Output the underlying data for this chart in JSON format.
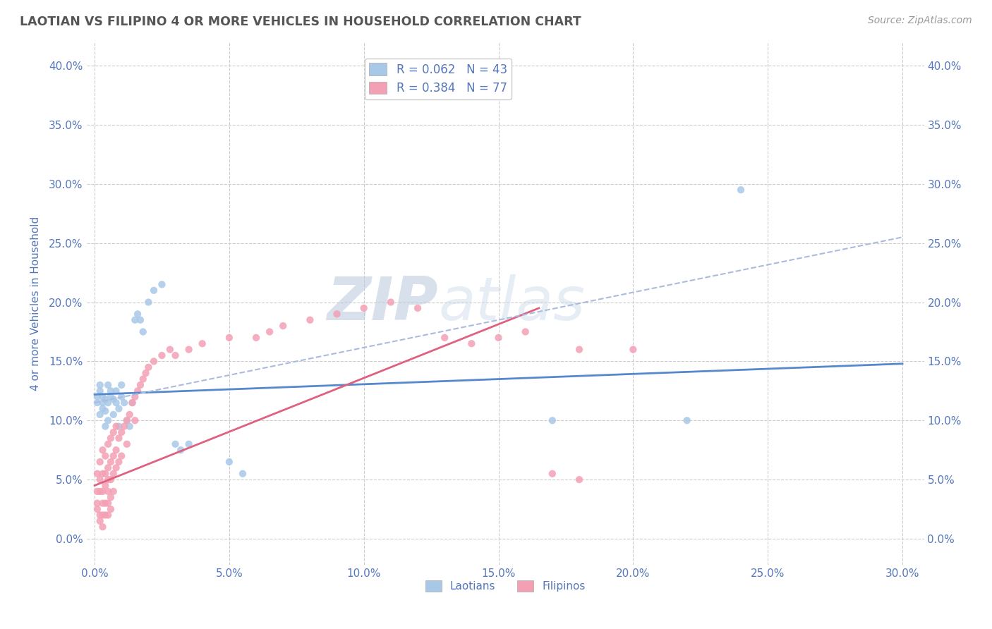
{
  "title": "LAOTIAN VS FILIPINO 4 OR MORE VEHICLES IN HOUSEHOLD CORRELATION CHART",
  "source": "Source: ZipAtlas.com",
  "xlabel_ticks": [
    0.0,
    0.05,
    0.1,
    0.15,
    0.2,
    0.25,
    0.3
  ],
  "ylabel_ticks": [
    0.0,
    0.05,
    0.1,
    0.15,
    0.2,
    0.25,
    0.3,
    0.35,
    0.4
  ],
  "xlim": [
    -0.003,
    0.308
  ],
  "ylim": [
    -0.022,
    0.42
  ],
  "ylabel": "4 or more Vehicles in Household",
  "laotian_R": 0.062,
  "laotian_N": 43,
  "filipino_R": 0.384,
  "filipino_N": 77,
  "laotian_color": "#a8c8e8",
  "filipino_color": "#f4a0b4",
  "laotian_line_color": "#5588cc",
  "filipino_line_color": "#e06080",
  "laotian_dash_color": "#aabbdd",
  "grid_color": "#cccccc",
  "title_color": "#555555",
  "axis_label_color": "#5577bb",
  "tick_color": "#5577bb",
  "watermark_text": "ZIPatlas",
  "watermark_color": "#d0d8e8",
  "laotian_scatter": [
    [
      0.001,
      0.12
    ],
    [
      0.001,
      0.115
    ],
    [
      0.002,
      0.125
    ],
    [
      0.002,
      0.13
    ],
    [
      0.002,
      0.105
    ],
    [
      0.003,
      0.12
    ],
    [
      0.003,
      0.11
    ],
    [
      0.003,
      0.115
    ],
    [
      0.004,
      0.118
    ],
    [
      0.004,
      0.108
    ],
    [
      0.004,
      0.095
    ],
    [
      0.005,
      0.13
    ],
    [
      0.005,
      0.115
    ],
    [
      0.005,
      0.1
    ],
    [
      0.006,
      0.125
    ],
    [
      0.006,
      0.12
    ],
    [
      0.007,
      0.118
    ],
    [
      0.007,
      0.105
    ],
    [
      0.008,
      0.125
    ],
    [
      0.008,
      0.115
    ],
    [
      0.009,
      0.11
    ],
    [
      0.009,
      0.095
    ],
    [
      0.01,
      0.13
    ],
    [
      0.01,
      0.12
    ],
    [
      0.011,
      0.115
    ],
    [
      0.012,
      0.1
    ],
    [
      0.013,
      0.095
    ],
    [
      0.014,
      0.115
    ],
    [
      0.015,
      0.185
    ],
    [
      0.016,
      0.19
    ],
    [
      0.017,
      0.185
    ],
    [
      0.018,
      0.175
    ],
    [
      0.02,
      0.2
    ],
    [
      0.022,
      0.21
    ],
    [
      0.025,
      0.215
    ],
    [
      0.03,
      0.08
    ],
    [
      0.032,
      0.075
    ],
    [
      0.035,
      0.08
    ],
    [
      0.05,
      0.065
    ],
    [
      0.055,
      0.055
    ],
    [
      0.17,
      0.1
    ],
    [
      0.22,
      0.1
    ],
    [
      0.24,
      0.295
    ]
  ],
  "filipino_scatter": [
    [
      0.001,
      0.055
    ],
    [
      0.001,
      0.04
    ],
    [
      0.001,
      0.03
    ],
    [
      0.001,
      0.025
    ],
    [
      0.002,
      0.065
    ],
    [
      0.002,
      0.05
    ],
    [
      0.002,
      0.04
    ],
    [
      0.002,
      0.02
    ],
    [
      0.002,
      0.015
    ],
    [
      0.003,
      0.075
    ],
    [
      0.003,
      0.055
    ],
    [
      0.003,
      0.04
    ],
    [
      0.003,
      0.03
    ],
    [
      0.003,
      0.02
    ],
    [
      0.003,
      0.01
    ],
    [
      0.004,
      0.07
    ],
    [
      0.004,
      0.055
    ],
    [
      0.004,
      0.045
    ],
    [
      0.004,
      0.03
    ],
    [
      0.004,
      0.02
    ],
    [
      0.005,
      0.08
    ],
    [
      0.005,
      0.06
    ],
    [
      0.005,
      0.05
    ],
    [
      0.005,
      0.04
    ],
    [
      0.005,
      0.03
    ],
    [
      0.005,
      0.02
    ],
    [
      0.006,
      0.085
    ],
    [
      0.006,
      0.065
    ],
    [
      0.006,
      0.05
    ],
    [
      0.006,
      0.035
    ],
    [
      0.006,
      0.025
    ],
    [
      0.007,
      0.09
    ],
    [
      0.007,
      0.07
    ],
    [
      0.007,
      0.055
    ],
    [
      0.007,
      0.04
    ],
    [
      0.008,
      0.095
    ],
    [
      0.008,
      0.075
    ],
    [
      0.008,
      0.06
    ],
    [
      0.009,
      0.085
    ],
    [
      0.009,
      0.065
    ],
    [
      0.01,
      0.09
    ],
    [
      0.01,
      0.07
    ],
    [
      0.011,
      0.095
    ],
    [
      0.012,
      0.1
    ],
    [
      0.012,
      0.08
    ],
    [
      0.013,
      0.105
    ],
    [
      0.014,
      0.115
    ],
    [
      0.015,
      0.12
    ],
    [
      0.015,
      0.1
    ],
    [
      0.016,
      0.125
    ],
    [
      0.017,
      0.13
    ],
    [
      0.018,
      0.135
    ],
    [
      0.019,
      0.14
    ],
    [
      0.02,
      0.145
    ],
    [
      0.022,
      0.15
    ],
    [
      0.025,
      0.155
    ],
    [
      0.028,
      0.16
    ],
    [
      0.03,
      0.155
    ],
    [
      0.035,
      0.16
    ],
    [
      0.04,
      0.165
    ],
    [
      0.05,
      0.17
    ],
    [
      0.06,
      0.17
    ],
    [
      0.065,
      0.175
    ],
    [
      0.07,
      0.18
    ],
    [
      0.08,
      0.185
    ],
    [
      0.09,
      0.19
    ],
    [
      0.1,
      0.195
    ],
    [
      0.11,
      0.2
    ],
    [
      0.12,
      0.195
    ],
    [
      0.13,
      0.17
    ],
    [
      0.14,
      0.165
    ],
    [
      0.15,
      0.17
    ],
    [
      0.16,
      0.175
    ],
    [
      0.18,
      0.16
    ],
    [
      0.2,
      0.16
    ],
    [
      0.17,
      0.055
    ],
    [
      0.18,
      0.05
    ]
  ],
  "laotian_line": [
    [
      0.0,
      0.122
    ],
    [
      0.3,
      0.148
    ]
  ],
  "filipino_line": [
    [
      0.0,
      0.045
    ],
    [
      0.165,
      0.195
    ]
  ],
  "laotian_dash_line": [
    [
      0.0,
      0.115
    ],
    [
      0.3,
      0.255
    ]
  ]
}
